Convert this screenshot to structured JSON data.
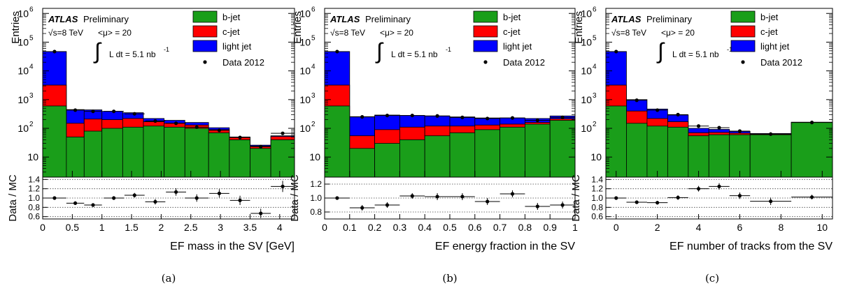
{
  "colors": {
    "b_jet": "#1a9e1a",
    "c_jet": "#ff0000",
    "light_jet": "#0000ff",
    "data": "#000000",
    "frame": "#000000",
    "grid": "#444444"
  },
  "common": {
    "experiment": "ATLAS",
    "status": "Preliminary",
    "sqrt_s_label": "√s=8 TeV",
    "pileup_label": "<μ> = 20",
    "integral_symbol": "∫",
    "lumi_label": "L dt = 5.1 nb",
    "lumi_exponent": "-1",
    "y_label_top": "Entries",
    "y_label_ratio": "Data / MC",
    "legend": [
      "b-jet",
      "c-jet",
      "light jet",
      "Data 2012"
    ],
    "top_y_ticks": [
      "10",
      "10",
      "10",
      "10",
      "10",
      "10"
    ],
    "top_y_exponents": [
      "",
      "2",
      "3",
      "4",
      "5",
      "6"
    ],
    "top_y_values": [
      10,
      100,
      1000,
      10000,
      100000,
      1000000
    ]
  },
  "chart_data": [
    {
      "type": "bar",
      "stacked": true,
      "y_scale": "log",
      "caption": "(a)",
      "xlabel": "EF mass in the SV [GeV]",
      "ylabel": "Entries",
      "xlim": [
        0,
        4.25
      ],
      "ylim": [
        2,
        1500000
      ],
      "x_ticks": [
        0,
        0.5,
        1,
        1.5,
        2,
        2.5,
        3,
        3.5,
        4
      ],
      "x_tick_labels": [
        "0",
        "0.5",
        "1",
        "1.5",
        "2",
        "2.5",
        "3",
        "3.5",
        "4"
      ],
      "bin_edges": [
        0,
        0.4,
        0.7,
        1.0,
        1.35,
        1.7,
        2.05,
        2.4,
        2.8,
        3.15,
        3.5,
        3.85,
        4.25
      ],
      "series": [
        {
          "name": "b-jet",
          "values": [
            600,
            50,
            80,
            100,
            110,
            120,
            110,
            100,
            70,
            40,
            20,
            40
          ]
        },
        {
          "name": "c-jet",
          "values": [
            2600,
            100,
            130,
            100,
            110,
            50,
            40,
            30,
            20,
            8,
            4,
            12
          ]
        },
        {
          "name": "light jet",
          "values": [
            44000,
            300,
            230,
            190,
            130,
            50,
            40,
            30,
            15,
            2,
            2,
            3
          ]
        }
      ],
      "data": [
        {
          "x": 0.2,
          "y": 47000,
          "xerr": 0.2
        },
        {
          "x": 0.55,
          "y": 430,
          "xerr": 0.15
        },
        {
          "x": 0.85,
          "y": 390,
          "xerr": 0.15
        },
        {
          "x": 1.2,
          "y": 390,
          "xerr": 0.17
        },
        {
          "x": 1.55,
          "y": 320,
          "xerr": 0.17
        },
        {
          "x": 1.9,
          "y": 180,
          "xerr": 0.17
        },
        {
          "x": 2.25,
          "y": 150,
          "xerr": 0.17
        },
        {
          "x": 2.6,
          "y": 110,
          "xerr": 0.2
        },
        {
          "x": 2.98,
          "y": 85,
          "xerr": 0.17
        },
        {
          "x": 3.33,
          "y": 48,
          "xerr": 0.17
        },
        {
          "x": 3.68,
          "y": 23,
          "xerr": 0.17
        },
        {
          "x": 4.05,
          "y": 67,
          "xerr": 0.2
        }
      ],
      "ratio": {
        "ylim": [
          0.55,
          1.45
        ],
        "y_ticks": [
          0.6,
          0.8,
          1.0,
          1.2,
          1.4
        ],
        "y_tick_labels": [
          "0.6",
          "0.8",
          "1.0",
          "1.2",
          "1.4"
        ],
        "grid": [
          0.6,
          0.8,
          1.0,
          1.2,
          1.4
        ],
        "points": [
          {
            "x": 0.2,
            "y": 1.0,
            "xerr": 0.2,
            "yerr": 0.01
          },
          {
            "x": 0.55,
            "y": 0.89,
            "xerr": 0.15,
            "yerr": 0.04
          },
          {
            "x": 0.85,
            "y": 0.85,
            "xerr": 0.15,
            "yerr": 0.04
          },
          {
            "x": 1.2,
            "y": 1.0,
            "xerr": 0.17,
            "yerr": 0.04
          },
          {
            "x": 1.55,
            "y": 1.06,
            "xerr": 0.17,
            "yerr": 0.05
          },
          {
            "x": 1.9,
            "y": 0.92,
            "xerr": 0.17,
            "yerr": 0.06
          },
          {
            "x": 2.25,
            "y": 1.13,
            "xerr": 0.17,
            "yerr": 0.08
          },
          {
            "x": 2.6,
            "y": 1.0,
            "xerr": 0.2,
            "yerr": 0.08
          },
          {
            "x": 2.98,
            "y": 1.1,
            "xerr": 0.17,
            "yerr": 0.09
          },
          {
            "x": 3.33,
            "y": 0.95,
            "xerr": 0.17,
            "yerr": 0.1
          },
          {
            "x": 3.68,
            "y": 0.67,
            "xerr": 0.17,
            "yerr": 0.1
          },
          {
            "x": 4.05,
            "y": 1.25,
            "xerr": 0.2,
            "yerr": 0.12
          }
        ]
      }
    },
    {
      "type": "bar",
      "stacked": true,
      "y_scale": "log",
      "caption": "(b)",
      "xlabel": "EF energy fraction in the SV",
      "ylabel": "Entries",
      "xlim": [
        0,
        1
      ],
      "ylim": [
        2,
        1500000
      ],
      "x_ticks": [
        0,
        0.1,
        0.2,
        0.3,
        0.4,
        0.5,
        0.6,
        0.7,
        0.8,
        0.9,
        1
      ],
      "x_tick_labels": [
        "0",
        "0.1",
        "0.2",
        "0.3",
        "0.4",
        "0.5",
        "0.6",
        "0.7",
        "0.8",
        "0.9",
        "1"
      ],
      "bin_edges": [
        0,
        0.1,
        0.2,
        0.3,
        0.4,
        0.5,
        0.6,
        0.7,
        0.8,
        0.9,
        1.0
      ],
      "series": [
        {
          "name": "b-jet",
          "values": [
            600,
            20,
            30,
            40,
            55,
            70,
            90,
            110,
            140,
            190
          ]
        },
        {
          "name": "c-jet",
          "values": [
            2600,
            35,
            60,
            70,
            65,
            50,
            40,
            30,
            20,
            25
          ]
        },
        {
          "name": "light jet",
          "values": [
            44000,
            200,
            200,
            170,
            150,
            130,
            100,
            90,
            60,
            55
          ]
        }
      ],
      "data": [
        {
          "x": 0.05,
          "y": 47000,
          "xerr": 0.05
        },
        {
          "x": 0.15,
          "y": 250,
          "xerr": 0.05
        },
        {
          "x": 0.25,
          "y": 280,
          "xerr": 0.05
        },
        {
          "x": 0.35,
          "y": 280,
          "xerr": 0.05
        },
        {
          "x": 0.45,
          "y": 270,
          "xerr": 0.05
        },
        {
          "x": 0.55,
          "y": 240,
          "xerr": 0.05
        },
        {
          "x": 0.65,
          "y": 220,
          "xerr": 0.05
        },
        {
          "x": 0.75,
          "y": 230,
          "xerr": 0.05
        },
        {
          "x": 0.85,
          "y": 190,
          "xerr": 0.05
        },
        {
          "x": 0.95,
          "y": 240,
          "xerr": 0.05
        }
      ],
      "ratio": {
        "ylim": [
          0.7,
          1.3
        ],
        "y_ticks": [
          0.8,
          1.0,
          1.2
        ],
        "y_tick_labels": [
          "0.8",
          "1.0",
          "1.2"
        ],
        "grid": [
          0.8,
          1.0,
          1.2
        ],
        "points": [
          {
            "x": 0.05,
            "y": 1.0,
            "xerr": 0.05,
            "yerr": 0.01
          },
          {
            "x": 0.15,
            "y": 0.86,
            "xerr": 0.05,
            "yerr": 0.04
          },
          {
            "x": 0.25,
            "y": 0.9,
            "xerr": 0.05,
            "yerr": 0.04
          },
          {
            "x": 0.35,
            "y": 1.03,
            "xerr": 0.05,
            "yerr": 0.04
          },
          {
            "x": 0.45,
            "y": 1.02,
            "xerr": 0.05,
            "yerr": 0.05
          },
          {
            "x": 0.55,
            "y": 1.02,
            "xerr": 0.05,
            "yerr": 0.05
          },
          {
            "x": 0.65,
            "y": 0.95,
            "xerr": 0.05,
            "yerr": 0.05
          },
          {
            "x": 0.75,
            "y": 1.06,
            "xerr": 0.05,
            "yerr": 0.05
          },
          {
            "x": 0.85,
            "y": 0.88,
            "xerr": 0.05,
            "yerr": 0.05
          },
          {
            "x": 0.95,
            "y": 0.9,
            "xerr": 0.05,
            "yerr": 0.05
          }
        ]
      }
    },
    {
      "type": "bar",
      "stacked": true,
      "y_scale": "log",
      "caption": "(c)",
      "xlabel": "EF number of tracks from the SV",
      "ylabel": "Entries",
      "xlim": [
        -0.5,
        10.5
      ],
      "ylim": [
        2,
        1500000
      ],
      "x_ticks": [
        0,
        2,
        4,
        6,
        8,
        10
      ],
      "x_tick_labels": [
        "0",
        "2",
        "4",
        "6",
        "8",
        "10"
      ],
      "bin_edges": [
        -0.5,
        0.5,
        1.5,
        2.5,
        3.5,
        4.5,
        5.5,
        6.5,
        8.5,
        10.5
      ],
      "series": [
        {
          "name": "b-jet",
          "values": [
            600,
            150,
            120,
            110,
            55,
            60,
            60,
            60,
            160
          ]
        },
        {
          "name": "c-jet",
          "values": [
            2600,
            250,
            100,
            60,
            15,
            12,
            8,
            3,
            2
          ]
        },
        {
          "name": "light jet",
          "values": [
            44000,
            600,
            250,
            120,
            30,
            20,
            10,
            3,
            2
          ]
        }
      ],
      "data": [
        {
          "x": 0,
          "y": 47000,
          "xerr": 0.5
        },
        {
          "x": 1,
          "y": 950,
          "xerr": 0.5
        },
        {
          "x": 2,
          "y": 430,
          "xerr": 0.5
        },
        {
          "x": 3,
          "y": 300,
          "xerr": 0.5
        },
        {
          "x": 4,
          "y": 120,
          "xerr": 0.5
        },
        {
          "x": 5,
          "y": 105,
          "xerr": 0.5
        },
        {
          "x": 6,
          "y": 80,
          "xerr": 0.5
        },
        {
          "x": 7.5,
          "y": 63,
          "xerr": 1
        },
        {
          "x": 9.5,
          "y": 160,
          "xerr": 1
        }
      ],
      "ratio": {
        "ylim": [
          0.55,
          1.45
        ],
        "y_ticks": [
          0.6,
          0.8,
          1.0,
          1.2,
          1.4
        ],
        "y_tick_labels": [
          "0.6",
          "0.8",
          "1.0",
          "1.2",
          "1.4"
        ],
        "grid": [
          0.6,
          0.8,
          1.0,
          1.2,
          1.4
        ],
        "points": [
          {
            "x": 0,
            "y": 1.0,
            "xerr": 0.5,
            "yerr": 0.01
          },
          {
            "x": 1,
            "y": 0.91,
            "xerr": 0.5,
            "yerr": 0.03
          },
          {
            "x": 2,
            "y": 0.9,
            "xerr": 0.5,
            "yerr": 0.04
          },
          {
            "x": 3,
            "y": 1.01,
            "xerr": 0.5,
            "yerr": 0.05
          },
          {
            "x": 4,
            "y": 1.2,
            "xerr": 0.5,
            "yerr": 0.06
          },
          {
            "x": 5,
            "y": 1.25,
            "xerr": 0.5,
            "yerr": 0.07
          },
          {
            "x": 6,
            "y": 1.05,
            "xerr": 0.5,
            "yerr": 0.07
          },
          {
            "x": 7.5,
            "y": 0.93,
            "xerr": 1,
            "yerr": 0.08
          },
          {
            "x": 9.5,
            "y": 1.02,
            "xerr": 1,
            "yerr": 0.05
          }
        ]
      }
    }
  ]
}
